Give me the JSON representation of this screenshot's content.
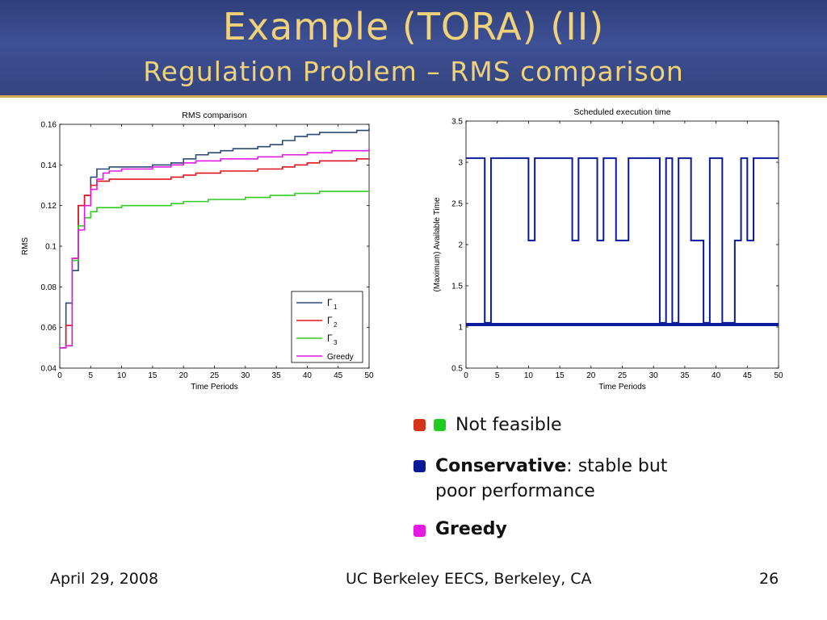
{
  "slide": {
    "title": "Example (TORA) (II)",
    "subtitle": "Regulation Problem – RMS comparison",
    "footer_left": "April 29, 2008",
    "footer_center": "UC Berkeley EECS, Berkeley, CA",
    "footer_right": "26"
  },
  "colors": {
    "header_bg": "#3e5095",
    "title_text": "#f0d27a",
    "accent_line": "#d3a84f",
    "gamma1": "#2a4b78",
    "gamma2": "#e0141e",
    "gamma3": "#33cc22",
    "greedy": "#e41ae4",
    "conservative": "#0a1a9a"
  },
  "bullets": [
    {
      "squares": [
        "#d4341a",
        "#1fcc1f"
      ],
      "bold": "",
      "text": "Not feasible"
    },
    {
      "squares": [
        "#0a1a9a"
      ],
      "bold": "Conservative",
      "text": ": stable but poor performance"
    },
    {
      "squares": [
        "#e41ae4"
      ],
      "bold": "Greedy",
      "text": ""
    }
  ],
  "chart_data": [
    {
      "type": "line",
      "title": "RMS comparison",
      "xlabel": "Time Periods",
      "ylabel": "RMS",
      "xlim": [
        0,
        50
      ],
      "ylim": [
        0.04,
        0.16
      ],
      "xticks": [
        "0",
        "5",
        "10",
        "15",
        "20",
        "25",
        "30",
        "35",
        "40",
        "45",
        "50"
      ],
      "yticks": [
        "0.04",
        "0.06",
        "0.08",
        "0.1",
        "0.12",
        "0.14",
        "0.16"
      ],
      "grid": false,
      "legend_position": "bottom-right",
      "series": [
        {
          "name": "Γ1",
          "label_main": "Γ",
          "label_sub": "1",
          "color": "#2a4b78",
          "x": [
            0,
            1,
            2,
            3,
            4,
            5,
            6,
            8,
            10,
            15,
            18,
            20,
            22,
            24,
            26,
            28,
            30,
            32,
            34,
            36,
            38,
            40,
            42,
            44,
            46,
            48,
            50
          ],
          "y": [
            0.05,
            0.072,
            0.088,
            0.12,
            0.125,
            0.134,
            0.138,
            0.139,
            0.139,
            0.14,
            0.141,
            0.143,
            0.145,
            0.146,
            0.147,
            0.148,
            0.148,
            0.149,
            0.15,
            0.152,
            0.154,
            0.155,
            0.156,
            0.156,
            0.156,
            0.157,
            0.158
          ]
        },
        {
          "name": "Γ2",
          "label_main": "Γ",
          "label_sub": "2",
          "color": "#e0141e",
          "x": [
            0,
            1,
            2,
            3,
            4,
            5,
            6,
            8,
            10,
            15,
            18,
            20,
            22,
            24,
            26,
            28,
            30,
            32,
            34,
            36,
            38,
            40,
            42,
            44,
            46,
            48,
            50
          ],
          "y": [
            0.05,
            0.061,
            0.094,
            0.12,
            0.125,
            0.13,
            0.132,
            0.133,
            0.133,
            0.133,
            0.134,
            0.135,
            0.136,
            0.136,
            0.137,
            0.137,
            0.137,
            0.138,
            0.138,
            0.139,
            0.14,
            0.141,
            0.142,
            0.142,
            0.142,
            0.143,
            0.143
          ]
        },
        {
          "name": "Γ3",
          "label_main": "Γ",
          "label_sub": "3",
          "color": "#33cc22",
          "x": [
            0,
            1,
            2,
            3,
            4,
            5,
            6,
            8,
            10,
            15,
            18,
            20,
            22,
            24,
            26,
            28,
            30,
            32,
            34,
            36,
            38,
            40,
            42,
            44,
            46,
            48,
            50
          ],
          "y": [
            0.05,
            0.051,
            0.093,
            0.11,
            0.114,
            0.117,
            0.119,
            0.119,
            0.12,
            0.12,
            0.121,
            0.122,
            0.122,
            0.123,
            0.123,
            0.123,
            0.124,
            0.124,
            0.125,
            0.125,
            0.126,
            0.126,
            0.127,
            0.127,
            0.127,
            0.127,
            0.127
          ]
        },
        {
          "name": "Greedy",
          "label_main": "Greedy",
          "label_sub": "",
          "color": "#e41ae4",
          "x": [
            0,
            1,
            2,
            3,
            4,
            5,
            6,
            7,
            8,
            10,
            15,
            18,
            20,
            22,
            24,
            26,
            28,
            30,
            32,
            34,
            36,
            38,
            40,
            42,
            44,
            46,
            48,
            50
          ],
          "y": [
            0.05,
            0.051,
            0.094,
            0.108,
            0.12,
            0.128,
            0.133,
            0.136,
            0.137,
            0.138,
            0.139,
            0.14,
            0.141,
            0.142,
            0.142,
            0.143,
            0.143,
            0.143,
            0.144,
            0.144,
            0.145,
            0.145,
            0.146,
            0.146,
            0.147,
            0.147,
            0.147,
            0.148
          ]
        }
      ]
    },
    {
      "type": "line",
      "title": "Scheduled execution time",
      "xlabel": "Time Periods",
      "ylabel": "(Maximum) Available Time",
      "xlim": [
        0,
        50
      ],
      "ylim": [
        0.5,
        3.5
      ],
      "xticks": [
        "0",
        "5",
        "10",
        "15",
        "20",
        "25",
        "30",
        "35",
        "40",
        "45",
        "50"
      ],
      "yticks": [
        "0.5",
        "1",
        "1.5",
        "2",
        "2.5",
        "3",
        "3.5"
      ],
      "grid": false,
      "series": [
        {
          "name": "",
          "color": "#0a1a9a",
          "step": true,
          "x": [
            0,
            3,
            4,
            10,
            11,
            17,
            18,
            21,
            22,
            24,
            26,
            31,
            32,
            33,
            34,
            36,
            38,
            39,
            41,
            43,
            44,
            45,
            46
          ],
          "y": [
            3.05,
            1.05,
            3.05,
            2.05,
            3.05,
            2.05,
            3.05,
            2.05,
            3.05,
            2.05,
            3.05,
            1.05,
            3.05,
            1.05,
            3.05,
            2.05,
            1.05,
            3.05,
            1.05,
            2.05,
            3.05,
            2.05,
            3.05
          ]
        },
        {
          "name": "",
          "color": "#0a1a9a",
          "step": true,
          "x": [
            0,
            50
          ],
          "y": [
            1.03,
            1.03
          ]
        }
      ]
    }
  ]
}
